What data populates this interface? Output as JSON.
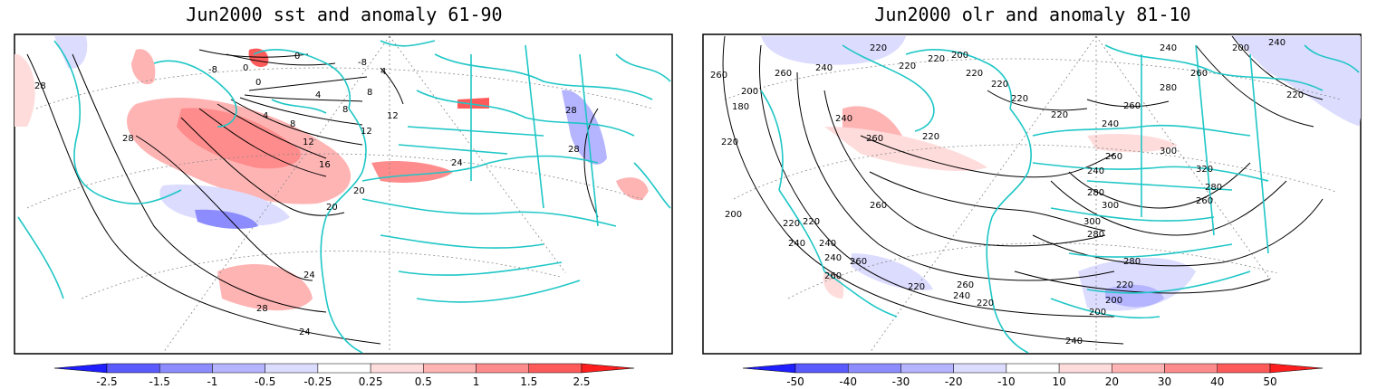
{
  "panels": [
    {
      "title": "Jun2000 sst and anomaly 61-90",
      "colorbar": {
        "labels": [
          "-2.5",
          "-1.5",
          "-1",
          "-0.5",
          "-0.25",
          "0.25",
          "0.5",
          "1",
          "1.5",
          "2.5"
        ],
        "colors": [
          "#1e1eff",
          "#5a5aff",
          "#8c8cff",
          "#b4b4ff",
          "#dcdcff",
          "#ffffff",
          "#ffdcdc",
          "#ffb4b4",
          "#ff8c8c",
          "#ff5a5a",
          "#ff1e1e"
        ]
      },
      "contour_labels": [
        "28",
        "28",
        "28",
        "24",
        "24",
        "20",
        "20",
        "16",
        "12",
        "12",
        "8",
        "8",
        "4",
        "4",
        "0",
        "0",
        "0",
        "12",
        "24",
        "28",
        "28",
        "-8",
        "8",
        "-8",
        "4"
      ]
    },
    {
      "title": "Jun2000 olr and anomaly 81-10",
      "colorbar": {
        "labels": [
          "-50",
          "-40",
          "-30",
          "-20",
          "-10",
          "10",
          "20",
          "30",
          "40",
          "50"
        ],
        "colors": [
          "#1e1eff",
          "#5a5aff",
          "#8c8cff",
          "#b4b4ff",
          "#dcdcff",
          "#ffffff",
          "#ffdcdc",
          "#ffb4b4",
          "#ff8c8c",
          "#ff5a5a",
          "#ff1e1e"
        ]
      },
      "contour_labels": [
        "260",
        "200",
        "180",
        "220",
        "240",
        "260",
        "260",
        "240",
        "220",
        "220",
        "220",
        "200",
        "220",
        "220",
        "220",
        "220",
        "220",
        "240",
        "260",
        "280",
        "260",
        "240",
        "300",
        "320",
        "280",
        "260",
        "280",
        "260",
        "240",
        "260",
        "280",
        "300",
        "300",
        "280",
        "260",
        "240",
        "220",
        "200",
        "200",
        "220",
        "240",
        "260",
        "220",
        "240",
        "200",
        "220",
        "240",
        "260",
        "240",
        "220",
        "200",
        "240",
        "220"
      ]
    }
  ]
}
